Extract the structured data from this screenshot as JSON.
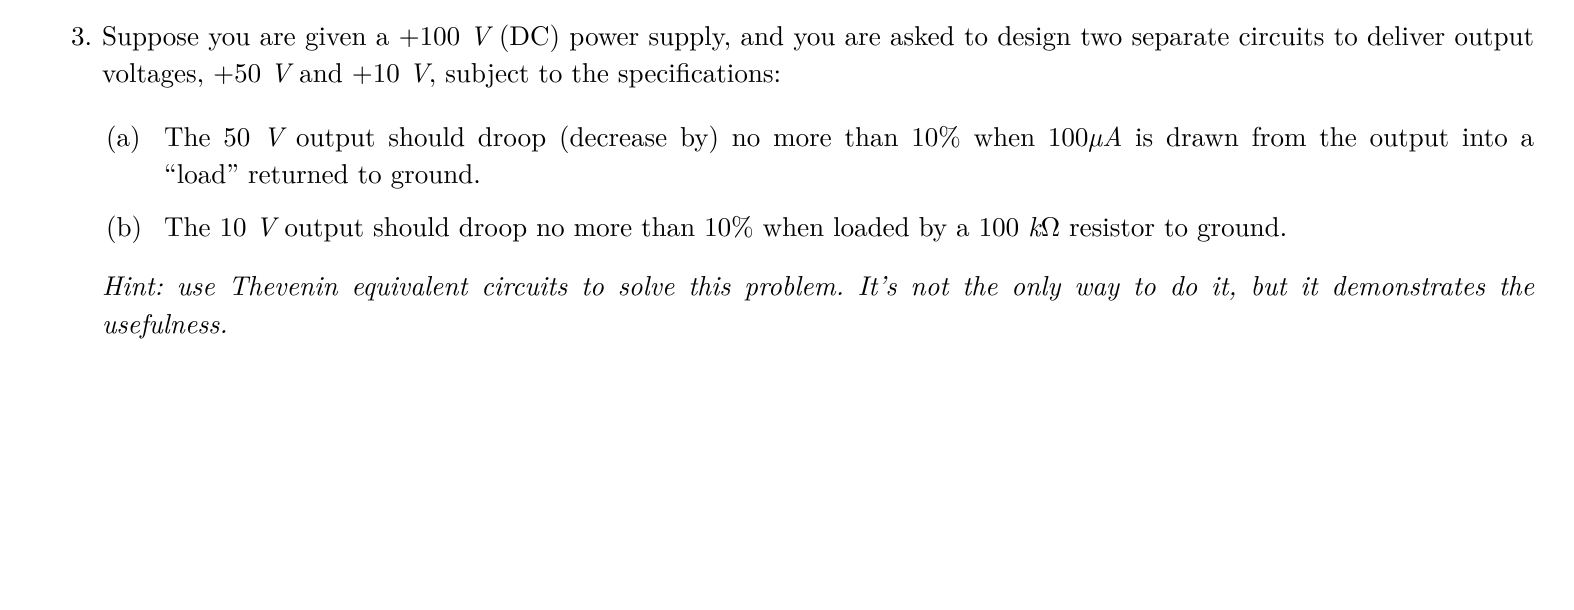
{
  "problem": {
    "number": "3.",
    "intro_html": "Suppose you are given a +100 <span class=\"math-it\">V</span> (DC) power supply, and you are asked to design two separate circuits to deliver output voltages, +50 <span class=\"math-it\">V</span> and +10 <span class=\"math-it\">V</span>, subject to the specifications:",
    "subitems": [
      {
        "label": "(a)",
        "body_html": "The 50 <span class=\"math-it\">V</span> output should droop (decrease by) no more than 10% when 100<span class=\"math-it\">µA</span> is drawn from the output into a &ldquo;load&rdquo; returned to ground."
      },
      {
        "label": "(b)",
        "body_html": "The 10 <span class=\"math-it\">V</span> output should droop no more than 10% when loaded by a 100 <span class=\"math-it\">k</span>&#8486; resistor to ground."
      }
    ],
    "hint_html": "Hint: use Thevenin equivalent circuits to solve this problem. It&rsquo;s not the only way to do it, but it demonstrates the usefulness."
  },
  "style": {
    "font_family": "Latin Modern Roman / Computer Modern serif",
    "font_size_pt": 20,
    "text_color": "#000000",
    "background_color": "#ffffff",
    "text_align": "justify"
  }
}
